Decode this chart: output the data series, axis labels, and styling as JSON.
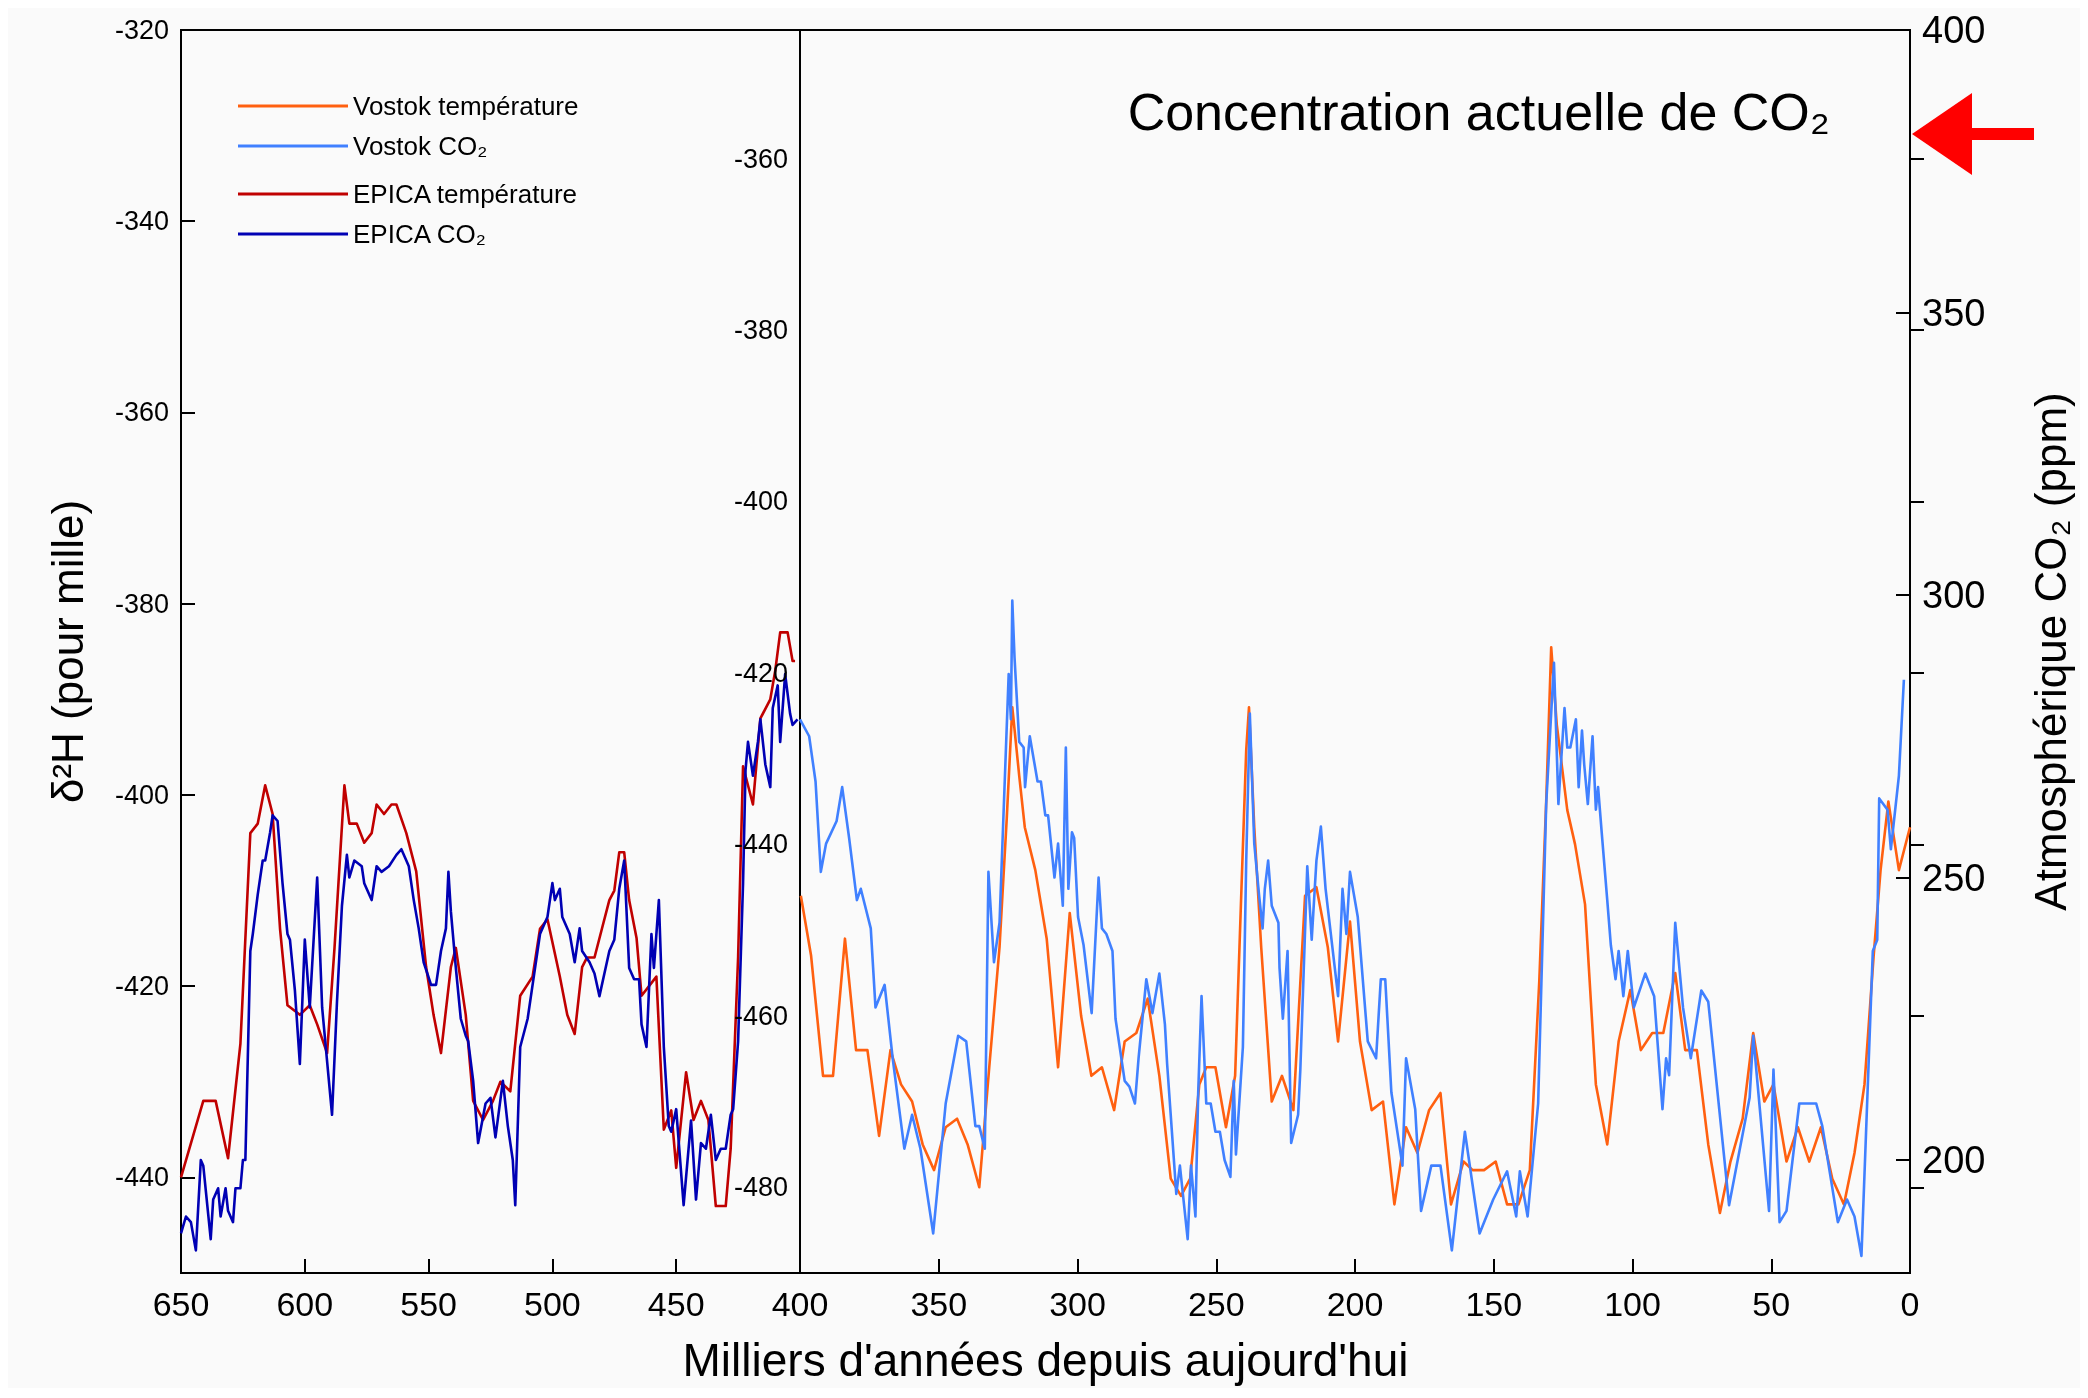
{
  "chart_data": [
    {
      "type": "line",
      "ylabel": "δ²H (pour mille)",
      "xlim": [
        650,
        400
      ],
      "xticks": [
        650,
        600,
        550,
        500,
        450
      ],
      "ylim": [
        -450,
        -320
      ],
      "yticks": [
        -320,
        -340,
        -360,
        -380,
        -400,
        -420,
        -440
      ],
      "y2lim": [
        180,
        400
      ],
      "grid": false,
      "legend": "top left",
      "series": [
        {
          "name": "EPICA température",
          "color": "#c00000",
          "x": [
            650,
            641,
            636,
            631,
            626,
            622,
            619,
            616,
            613,
            610,
            607,
            602,
            598,
            595,
            591,
            588,
            584,
            582,
            579,
            576,
            573,
            571,
            568,
            565,
            563,
            559,
            555,
            551,
            548,
            545,
            541,
            539,
            535,
            532,
            528,
            524,
            521,
            517,
            513,
            508,
            505,
            502,
            497,
            494,
            491,
            488,
            486,
            483,
            480,
            477,
            475,
            473,
            471,
            469,
            466,
            464,
            458,
            455,
            452,
            450,
            446,
            443,
            440,
            437,
            434,
            430,
            428,
            425,
            423,
            419,
            416,
            412,
            410,
            408,
            405,
            403,
            402
          ],
          "values": [
            -440,
            -432,
            -432,
            -438,
            -426,
            -404,
            -403,
            -399,
            -402,
            -414,
            -422,
            -423,
            -422,
            -424,
            -427,
            -416,
            -399,
            -403,
            -403,
            -405,
            -404,
            -401,
            -402,
            -401,
            -401,
            -404,
            -408,
            -418,
            -423,
            -427,
            -418,
            -416,
            -423,
            -432,
            -434,
            -432,
            -430,
            -431,
            -421,
            -419,
            -414,
            -413,
            -419,
            -423,
            -425,
            -418,
            -417,
            -417,
            -414,
            -411,
            -410,
            -406,
            -406,
            -411,
            -415,
            -421,
            -419,
            -435,
            -433,
            -439,
            -429,
            -434,
            -432,
            -434,
            -443,
            -443,
            -437,
            -417,
            -397,
            -401,
            -392,
            -390,
            -387,
            -383,
            -383,
            -386,
            -386
          ]
        },
        {
          "name": "EPICA CO₂",
          "color": "#0000b4",
          "axis": "y2",
          "x": [
            650,
            648,
            646,
            644,
            642,
            641,
            638,
            637,
            635,
            634,
            632,
            631,
            629,
            628,
            626,
            625,
            624,
            622,
            621,
            619,
            617,
            616,
            614,
            613,
            611,
            609,
            607,
            606,
            604,
            602,
            600,
            598,
            595,
            593,
            589,
            587,
            585,
            583,
            582,
            580,
            577,
            576,
            573,
            571,
            569,
            566,
            563,
            561,
            559,
            558,
            556,
            554,
            552,
            549,
            547,
            545,
            543,
            542,
            541,
            539,
            537,
            535,
            534,
            532,
            530,
            527,
            525,
            523,
            520,
            518,
            516,
            515,
            513,
            510,
            507,
            505,
            502,
            500,
            499,
            497,
            496,
            493,
            491,
            489,
            488,
            485,
            483,
            481,
            479,
            477,
            475,
            473,
            471,
            469,
            467,
            465,
            464,
            462,
            460,
            459,
            457,
            455,
            453,
            452,
            450,
            447,
            444,
            442,
            440,
            438,
            436,
            434,
            432,
            430,
            428,
            427,
            425,
            423,
            422,
            421,
            419,
            417,
            416,
            414,
            412,
            411,
            409,
            408,
            406,
            404,
            403,
            401
          ],
          "values": [
            187,
            190,
            189,
            184,
            200,
            199,
            186,
            193,
            195,
            190,
            195,
            191,
            189,
            195,
            195,
            200,
            200,
            237,
            240,
            247,
            253,
            253,
            258,
            261,
            260,
            249,
            240,
            239,
            230,
            217,
            239,
            227,
            250,
            227,
            208,
            228,
            245,
            254,
            250,
            253,
            252,
            249,
            246,
            252,
            251,
            252,
            254,
            255,
            253,
            252,
            246,
            241,
            235,
            231,
            231,
            237,
            241,
            251,
            244,
            234,
            225,
            222,
            221,
            214,
            203,
            210,
            211,
            204,
            214,
            206,
            200,
            192,
            220,
            225,
            234,
            240,
            243,
            249,
            246,
            248,
            243,
            240,
            235,
            241,
            237,
            235,
            233,
            229,
            233,
            237,
            239,
            248,
            253,
            234,
            232,
            232,
            224,
            220,
            240,
            234,
            246,
            220,
            206,
            205,
            209,
            192,
            207,
            193,
            203,
            202,
            208,
            200,
            202,
            202,
            208,
            209,
            221,
            249,
            269,
            274,
            268,
            274,
            278,
            270,
            266,
            280,
            284,
            274,
            286,
            279,
            277,
            278
          ]
        }
      ]
    },
    {
      "type": "line",
      "xlabel": "Milliers d'années depuis aujourd'hui",
      "y2label": "Atmosphérique CO₂ (ppm)",
      "xlim": [
        400,
        0
      ],
      "xticks": [
        400,
        350,
        300,
        250,
        200,
        150,
        100,
        50,
        0
      ],
      "ylim": [
        -490,
        -345
      ],
      "yticks": [
        -360,
        -380,
        -400,
        -420,
        -440,
        -460,
        -480
      ],
      "y2lim": [
        180,
        400
      ],
      "y2ticks": [
        200,
        250,
        300,
        350,
        400
      ],
      "grid": false,
      "legend": "top left",
      "annotations": [
        "Concentration actuelle de CO₂"
      ],
      "series": [
        {
          "name": "Vostok température",
          "color": "#ff6010",
          "x": [
            399.7,
            396.0,
            391.7,
            388.1,
            383.8,
            379.8,
            375.7,
            371.5,
            367.4,
            363.6,
            359.6,
            355.8,
            351.7,
            347.5,
            343.4,
            339.6,
            335.4,
            331.8,
            328.1,
            325.5,
            323.5,
            321.0,
            319.0,
            315.2,
            311.1,
            307.0,
            302.8,
            298.7,
            295.0,
            291.2,
            286.8,
            283.0,
            278.8,
            274.7,
            270.5,
            266.4,
            262.7,
            259.4,
            256.1,
            253.6,
            250.3,
            246.5,
            243.2,
            240.9,
            239.2,
            238.2,
            236.3,
            233.8,
            230.0,
            226.3,
            222.2,
            218.0,
            213.9,
            209.8,
            206.1,
            201.8,
            198.2,
            194.0,
            189.9,
            185.8,
            181.6,
            177.5,
            173.3,
            169.2,
            165.4,
            160.9,
            157.6,
            153.5,
            149.3,
            145.2,
            141.1,
            137.0,
            133.6,
            131.1,
            129.3,
            127.3,
            123.5,
            120.7,
            117.1,
            113.2,
            109.1,
            105.0,
            100.8,
            97.0,
            92.9,
            88.9,
            84.6,
            81.0,
            76.8,
            72.7,
            68.5,
            64.7,
            60.3,
            56.5,
            52.5,
            49.2,
            44.5,
            40.4,
            36.3,
            32.1,
            28.0,
            23.8,
            20.0,
            16.4,
            13.1,
            10.6,
            7.8,
            4.0,
            0
          ],
          "values": [
            -446,
            -453,
            -467,
            -467,
            -451,
            -464,
            -464,
            -474,
            -464,
            -468,
            -470,
            -475,
            -478,
            -473,
            -472,
            -475,
            -480,
            -466,
            -452,
            -437,
            -424,
            -432,
            -438,
            -443,
            -451,
            -466,
            -448,
            -460,
            -467,
            -466,
            -471,
            -463,
            -462,
            -458,
            -467,
            -479,
            -481,
            -479,
            -468,
            -466,
            -466,
            -473,
            -467,
            -445,
            -429,
            -424,
            -438,
            -452,
            -470,
            -467,
            -471,
            -446,
            -445,
            -452,
            -463,
            -449,
            -463,
            -471,
            -470,
            -482,
            -473,
            -476,
            -471,
            -469,
            -482,
            -477,
            -478,
            -478,
            -477,
            -482,
            -482,
            -478,
            -456,
            -435,
            -417,
            -426,
            -436,
            -440,
            -447,
            -468,
            -475,
            -463,
            -457,
            -464,
            -462,
            -462,
            -455,
            -464,
            -464,
            -475,
            -483,
            -477,
            -472,
            -462,
            -470,
            -468,
            -477,
            -473,
            -477,
            -473,
            -479,
            -482,
            -476,
            -468,
            -453,
            -443,
            -435,
            -443,
            -438
          ]
        },
        {
          "name": "Vostok CO₂",
          "color": "#4080ff",
          "axis": "y2",
          "x": [
            400,
            396.7,
            394.4,
            392.5,
            390.6,
            386.8,
            384.8,
            382.3,
            379.5,
            378.1,
            374.5,
            372.8,
            369.5,
            366.6,
            362.4,
            359.6,
            356.6,
            352.0,
            347.5,
            343.0,
            340.1,
            336.8,
            335.4,
            333.4,
            332.1,
            330.1,
            328.1,
            326.0,
            324.8,
            324.0,
            323.5,
            322.7,
            321.0,
            319.4,
            318.9,
            317.2,
            314.4,
            313.2,
            311.6,
            310.6,
            308.3,
            307.0,
            305.3,
            304.2,
            303.3,
            302.0,
            301.2,
            299.8,
            297.8,
            294.9,
            292.4,
            291.2,
            289.6,
            287.4,
            286.3,
            283.0,
            281.3,
            279.3,
            278.0,
            275.2,
            273.0,
            270.5,
            268.5,
            267.7,
            264.4,
            263.1,
            260.3,
            259.1,
            257.5,
            256.5,
            255.3,
            253.6,
            252.0,
            250.3,
            248.7,
            247.0,
            244.9,
            243.7,
            242.9,
            240.4,
            239.2,
            237.9,
            236.3,
            234.6,
            233.3,
            232.5,
            231.3,
            230.0,
            227.6,
            227.2,
            226.0,
            224.3,
            223.0,
            220.5,
            219.7,
            217.2,
            215.6,
            213.9,
            212.3,
            210.6,
            206.1,
            204.5,
            203.1,
            201.8,
            199.0,
            195.4,
            192.4,
            190.7,
            189.1,
            186.9,
            182.9,
            181.6,
            178.3,
            176.2,
            172.5,
            169.2,
            165.1,
            160.4,
            155.1,
            150.2,
            145.2,
            141.9,
            140.6,
            137.8,
            136.1,
            134.0,
            131.1,
            128.3,
            126.7,
            124.5,
            123.5,
            122.4,
            120.4,
            119.4,
            118.2,
            117.4,
            116.1,
            114.4,
            113.2,
            112.4,
            111.1,
            109.1,
            107.8,
            106.1,
            105.0,
            103.3,
            101.7,
            99.5,
            95.4,
            92.2,
            89.2,
            87.9,
            86.8,
            84.6,
            81.8,
            79.0,
            75.2,
            72.7,
            65.2,
            57.8,
            56.5,
            50.8,
            49.2,
            47.0,
            44.5,
            39.9,
            33.8,
            31.6,
            26.0,
            22.7,
            20.0,
            17.5,
            13.4,
            11.8,
            11.1,
            8.1,
            6.9,
            4.0,
            2.2
          ],
          "values": [
            278,
            275,
            267,
            251,
            256,
            260,
            266,
            257,
            246,
            248,
            241,
            227,
            231,
            218,
            202,
            208,
            202,
            187,
            210,
            222,
            221,
            206,
            206,
            202,
            251,
            235,
            242,
            270,
            286,
            278,
            299,
            289,
            274,
            273,
            266,
            275,
            267,
            267,
            261,
            261,
            250,
            256,
            245,
            273,
            248,
            258,
            257,
            243,
            238,
            226,
            250,
            241,
            240,
            237,
            225,
            214,
            213,
            210,
            218,
            232,
            226,
            233,
            224,
            217,
            194,
            199,
            186,
            199,
            190,
            212,
            229,
            210,
            210,
            205,
            205,
            200,
            197,
            214,
            201,
            220,
            253,
            279,
            256,
            247,
            241,
            248,
            253,
            245,
            242,
            234,
            225,
            237,
            203,
            208,
            216,
            252,
            239,
            253,
            259,
            248,
            229,
            248,
            240,
            251,
            243,
            221,
            218,
            232,
            232,
            212,
            199,
            218,
            209,
            191,
            199,
            199,
            184,
            205,
            187,
            193,
            198,
            190,
            198,
            190,
            199,
            210,
            263,
            288,
            263,
            280,
            273,
            273,
            278,
            266,
            276,
            270,
            263,
            275,
            262,
            266,
            258,
            246,
            238,
            232,
            237,
            229,
            237,
            227,
            233,
            229,
            209,
            218,
            215,
            242,
            227,
            218,
            230,
            228,
            192,
            211,
            222,
            191,
            216,
            189,
            191,
            210,
            210,
            206,
            189,
            193,
            190,
            183,
            237,
            239,
            264,
            262,
            255,
            268,
            285
          ]
        }
      ]
    }
  ]
}
